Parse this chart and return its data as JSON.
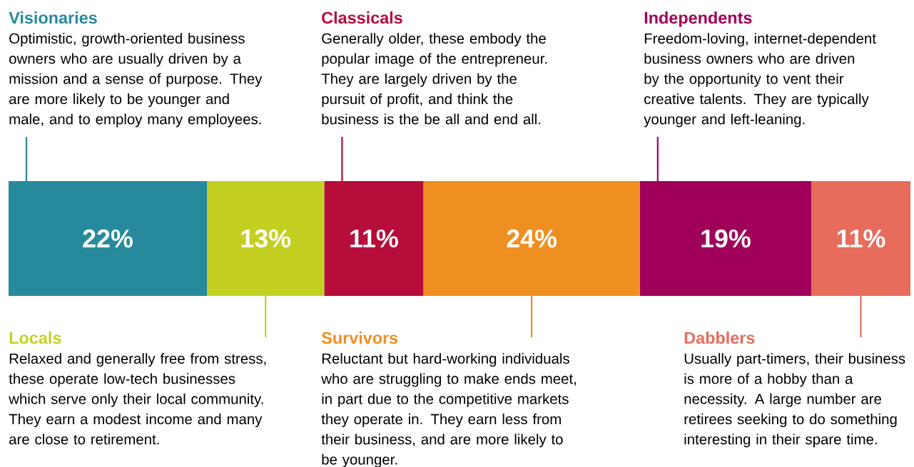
{
  "chart_data": {
    "type": "bar",
    "orientation": "horizontal",
    "stacked": true,
    "categories": [
      null
    ],
    "tick_labels": false,
    "series": [
      {
        "name": "Visionaries",
        "color": "#268a9c",
        "values": [
          22
        ],
        "value_labels": [
          "22%"
        ]
      },
      {
        "name": "Locals",
        "color": "#c3d022",
        "values": [
          13
        ],
        "value_labels": [
          "13%"
        ]
      },
      {
        "name": "Classicals",
        "color": "#b60d3a",
        "values": [
          11
        ],
        "value_labels": [
          "11%"
        ]
      },
      {
        "name": "Survivors",
        "color": "#ef8e21",
        "values": [
          24
        ],
        "value_labels": [
          "24%"
        ]
      },
      {
        "name": "Independents",
        "color": "#a0005a",
        "values": [
          19
        ],
        "value_labels": [
          "19%"
        ]
      },
      {
        "name": "Dabblers",
        "color": "#e86c5c",
        "values": [
          11
        ],
        "value_labels": [
          "11%"
        ]
      }
    ],
    "annotations": [
      "Optimistic, growth-oriented business owners who are usually driven by a mission and a sense of purpose. They are more likely to be younger and male, and to employ many employees.",
      "Relaxed and generally free from stress, these operate low-tech businesses which serve only their local community. They earn a modest income and many are close to retirement.",
      "Generally older, these embody the popular image of the entrepreneur. They are largely driven by the pursuit of profit, and think the business is the be all and end all.",
      "Reluctant but hard-working individuals who are struggling to make ends meet, in part due to the competitive markets they operate in. They earn less from their business, and are more likely to be younger.",
      "Freedom-loving, internet-dependent business owners who are driven by the opportunity to vent their creative talents. They are typically younger and left-leaning.",
      "Usually part-timers, their business is more of a hobby than a necessity. A large number are retirees seeking to do something interesting in their spare time."
    ]
  }
}
